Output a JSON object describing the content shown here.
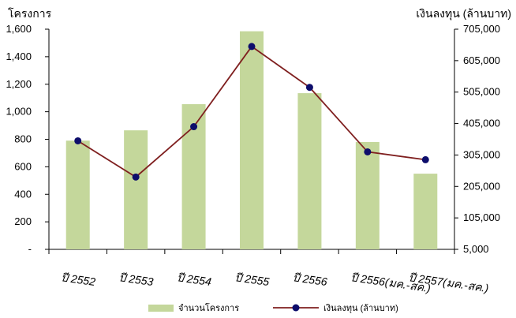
{
  "chart_data": {
    "type": "bar+line",
    "categories": [
      "ปี 2552",
      "ปี 2553",
      "ปี 2554",
      "ปี 2555",
      "ปี 2556",
      "ปี 2556(มค.-สค.)",
      "ปี 2557(มค.-สค.)"
    ],
    "series": [
      {
        "name": "จำนวนโครงการ",
        "type": "bar",
        "axis": "left",
        "color": "#c4d79b",
        "values": [
          790,
          865,
          1055,
          1585,
          1135,
          780,
          550
        ]
      },
      {
        "name": "เงินลงทุน (ล้านบาท)",
        "type": "line",
        "axis": "right",
        "color": "#7f1f1f",
        "marker_color": "#0d0d6b",
        "values": [
          350000,
          235000,
          395000,
          650000,
          520000,
          315000,
          290000
        ]
      }
    ],
    "left_axis": {
      "title": "โครงการ",
      "ylim": [
        0,
        1600
      ],
      "ticks": [
        0,
        200,
        400,
        600,
        800,
        1000,
        1200,
        1400,
        1600
      ],
      "tick_labels": [
        "-",
        "200",
        "400",
        "600",
        "800",
        "1,000",
        "1,200",
        "1,400",
        "1,600"
      ]
    },
    "right_axis": {
      "title": "เงินลงทุน (ล้านบาท)",
      "ylim": [
        5000,
        705000
      ],
      "ticks": [
        5000,
        105000,
        205000,
        305000,
        405000,
        505000,
        605000,
        705000
      ],
      "tick_labels": [
        "5,000",
        "105,000",
        "205,000",
        "305,000",
        "405,000",
        "505,000",
        "605,000",
        "705,000"
      ]
    },
    "legend_position": "bottom",
    "grid": false
  }
}
